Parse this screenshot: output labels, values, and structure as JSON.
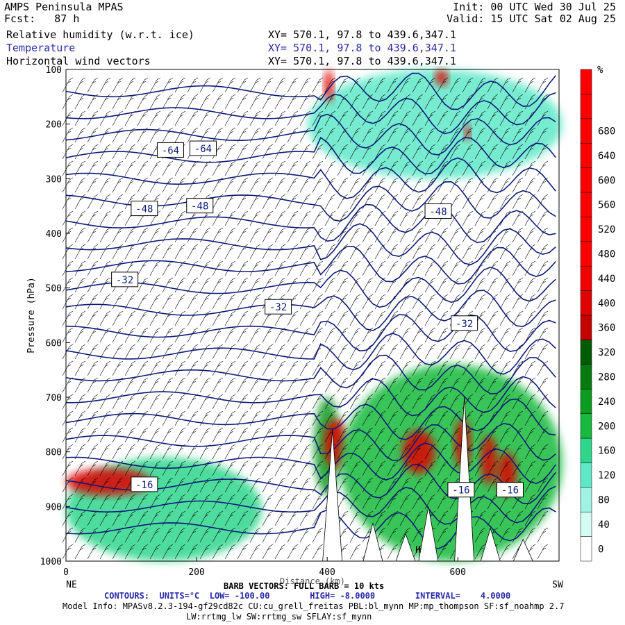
{
  "header": {
    "title": "AMPS Peninsula MPAS",
    "fcst": "Fcst:   87 h",
    "init": "Init: 00 UTC Wed 30 Jul 25",
    "valid": "Valid: 15 UTC Sat 02 Aug 25",
    "fields": [
      {
        "label": "Relative humidity (w.r.t. ice)",
        "xy": "XY= 570.1, 97.8 to 439.6,347.1",
        "color": "#000000"
      },
      {
        "label": "Temperature",
        "xy": "XY= 570.1, 97.8 to 439.6,347.1",
        "color": "#2a2aa8"
      },
      {
        "label": "Horizontal wind vectors",
        "xy": "XY= 570.1, 97.8 to 439.6,347.1",
        "color": "#000000"
      }
    ]
  },
  "footer": {
    "barb": "BARB VECTORS: FULL BARB = 10 kts",
    "contours": "CONTOURS:  UNITS=°C  LOW= -100.00        HIGH= -8.0000        INTERVAL=    4.0000",
    "model_info": "Model Info: MPASv8.2.3-194-gf29cd82c CU:cu_grell_freitas PBL:bl_mynn MP:mp_thompson SF:sf_noahmp 2.7",
    "model_info2": "LW:rrtmg_lw SW:rrtmg_sw SFLAY:sf_mynn"
  },
  "chart_data": {
    "type": "heatmap",
    "ylabel": "Pressure (hPa)",
    "xlabel": "Distance (km)",
    "x_ticks": [
      0,
      200,
      400,
      600
    ],
    "y_ticks": [
      100,
      200,
      300,
      400,
      500,
      600,
      700,
      800,
      900,
      1000
    ],
    "xlim": [
      0,
      755
    ],
    "ylim": [
      1000,
      100
    ],
    "left_end_label": "NE",
    "right_end_label": "SW",
    "terrain_high_label": "H",
    "colorbar": {
      "unit": "%",
      "labels": [
        0,
        40,
        80,
        120,
        160,
        200,
        240,
        280,
        320,
        360,
        400,
        440,
        480,
        520,
        560,
        600,
        640,
        680
      ],
      "colors": [
        "#ffffff",
        "#d4fbf4",
        "#9ff2e4",
        "#5ee8c8",
        "#2ed68c",
        "#17ba3e",
        "#0c9c20",
        "#067a10",
        "#005c05",
        "#c40000",
        "#e00000",
        "#f20000",
        "#ff0000",
        "#ff0000",
        "#ff0000",
        "#ff0000",
        "#ff0000",
        "#ff0000",
        "#ff0000",
        "#ff0000"
      ]
    },
    "temperature_labels": [
      {
        "text": "-64",
        "x": 160,
        "p": 248
      },
      {
        "text": "-64",
        "x": 210,
        "p": 245
      },
      {
        "text": "-48",
        "x": 120,
        "p": 355
      },
      {
        "text": "-48",
        "x": 205,
        "p": 350
      },
      {
        "text": "-48",
        "x": 570,
        "p": 360
      },
      {
        "text": "-32",
        "x": 90,
        "p": 485
      },
      {
        "text": "-32",
        "x": 325,
        "p": 535
      },
      {
        "text": "-32",
        "x": 610,
        "p": 565
      },
      {
        "text": "-16",
        "x": 120,
        "p": 860
      },
      {
        "text": "-16",
        "x": 605,
        "p": 870
      },
      {
        "text": "-16",
        "x": 680,
        "p": 870
      }
    ],
    "rh_blobs": [
      {
        "x": [
          0,
          300
        ],
        "p": [
          810,
          1000
        ],
        "level": 4
      },
      {
        "x": [
          0,
          130
        ],
        "p": [
          830,
          880
        ],
        "level": 10
      },
      {
        "x": [
          380,
          420
        ],
        "p": [
          700,
          880
        ],
        "level": 6
      },
      {
        "x": [
          395,
          430
        ],
        "p": [
          740,
          830
        ],
        "level": 10
      },
      {
        "x": [
          420,
          760
        ],
        "p": [
          640,
          1000
        ],
        "level": 5
      },
      {
        "x": [
          515,
          565
        ],
        "p": [
          760,
          840
        ],
        "level": 10
      },
      {
        "x": [
          595,
          620
        ],
        "p": [
          740,
          830
        ],
        "level": 10
      },
      {
        "x": [
          635,
          660
        ],
        "p": [
          770,
          860
        ],
        "level": 10
      },
      {
        "x": [
          660,
          690
        ],
        "p": [
          800,
          880
        ],
        "level": 10
      },
      {
        "x": [
          370,
          760
        ],
        "p": [
          100,
          300
        ],
        "level": 3
      },
      {
        "x": [
          395,
          410
        ],
        "p": [
          100,
          160
        ],
        "level": 10
      },
      {
        "x": [
          565,
          585
        ],
        "p": [
          100,
          130
        ],
        "level": 10
      },
      {
        "x": [
          610,
          620
        ],
        "p": [
          200,
          230
        ],
        "level": 10
      }
    ]
  }
}
